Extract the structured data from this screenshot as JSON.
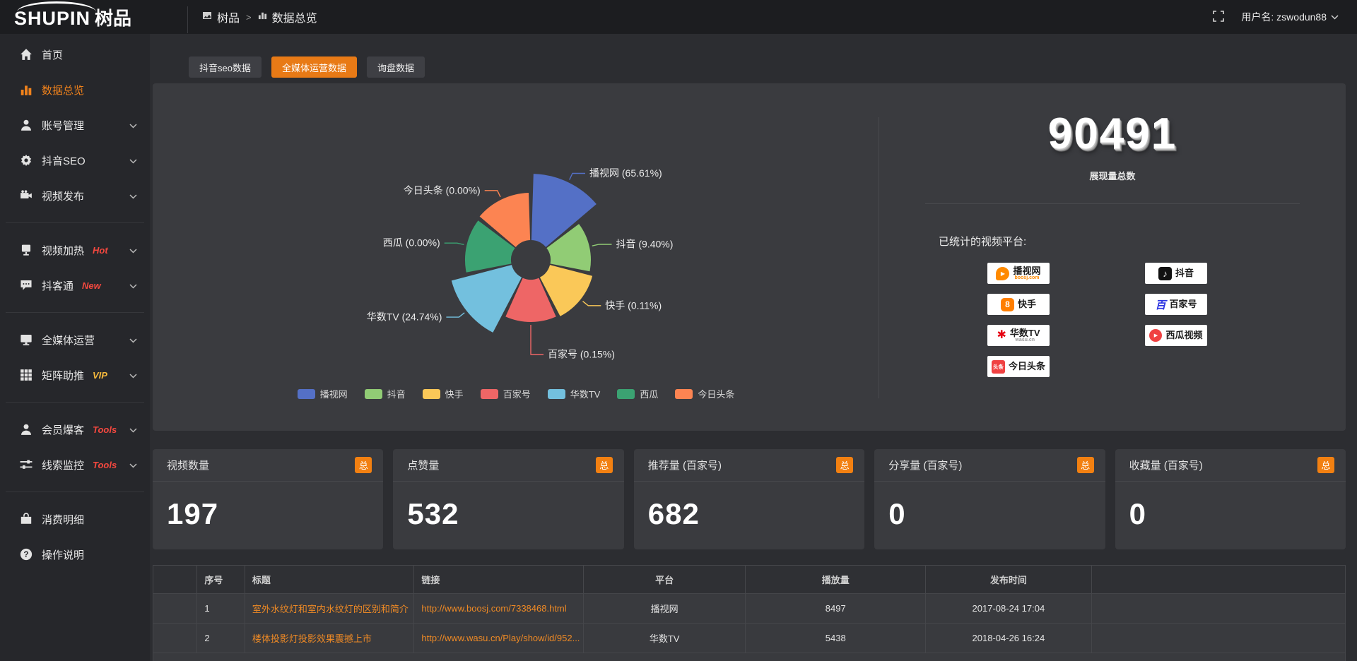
{
  "topbar": {
    "logo_en": "SHUPIN",
    "logo_cn": "树品",
    "breadcrumb": {
      "root": "树品",
      "separator": ">",
      "current": "数据总览"
    },
    "username": "用户名: zswodun88"
  },
  "sidebar": {
    "items": [
      {
        "key": "home",
        "icon": "home",
        "label": "首页"
      },
      {
        "key": "data-overview",
        "icon": "chart",
        "label": "数据总览",
        "active": true
      },
      {
        "key": "account-manage",
        "icon": "user",
        "label": "账号管理",
        "chevron": true
      },
      {
        "key": "douyin-seo",
        "icon": "gear",
        "label": "抖音SEO",
        "chevron": true
      },
      {
        "key": "video-publish",
        "icon": "video",
        "label": "视频发布",
        "chevron": true,
        "divider_after": true
      },
      {
        "key": "video-heat",
        "icon": "screen",
        "label": "视频加热",
        "tag": "Hot",
        "tag_color": "#f4483f",
        "chevron": true
      },
      {
        "key": "douketong",
        "icon": "chat",
        "label": "抖客通",
        "tag": "New",
        "tag_color": "#f4483f",
        "chevron": true,
        "divider_after": true
      },
      {
        "key": "all-media",
        "icon": "monitor",
        "label": "全媒体运营",
        "chevron": true
      },
      {
        "key": "matrix-boost",
        "icon": "grid",
        "label": "矩阵助推",
        "tag": "VIP",
        "tag_color": "#f5b93c",
        "chevron": true,
        "divider_after": true
      },
      {
        "key": "member-burst",
        "icon": "user",
        "label": "会员爆客",
        "tag": "Tools",
        "tag_color": "#f4483f",
        "chevron": true
      },
      {
        "key": "clue-monitor",
        "icon": "sliders",
        "label": "线索监控",
        "tag": "Tools",
        "tag_color": "#f4483f",
        "chevron": true,
        "divider_after": true
      },
      {
        "key": "consume-detail",
        "icon": "bag",
        "label": "消费明细"
      },
      {
        "key": "operation-help",
        "icon": "help",
        "label": "操作说明"
      }
    ]
  },
  "tabs": [
    {
      "key": "douyin-seo-data",
      "label": "抖音seo数据",
      "active": false
    },
    {
      "key": "all-media-data",
      "label": "全媒体运营数据",
      "active": true
    },
    {
      "key": "inquiry-data",
      "label": "询盘数据",
      "active": false
    }
  ],
  "chart_data": {
    "type": "pie",
    "subtype": "nightingale-rose",
    "categories": [
      "播视网",
      "抖音",
      "快手",
      "百家号",
      "华数TV",
      "西瓜",
      "今日头条"
    ],
    "values_percent": [
      65.61,
      9.4,
      0.11,
      0.15,
      24.74,
      0.0,
      0.0
    ],
    "labels": [
      "播视网 (65.61%)",
      "抖音 (9.40%)",
      "快手 (0.11%)",
      "百家号 (0.15%)",
      "华数TV (24.74%)",
      "西瓜 (0.00%)",
      "今日头条 (0.00%)"
    ],
    "colors": [
      "#5470c6",
      "#91cc75",
      "#fac858",
      "#ee6666",
      "#73c0de",
      "#3ba272",
      "#fc8452"
    ],
    "legend": [
      "播视网",
      "抖音",
      "快手",
      "百家号",
      "华数TV",
      "西瓜",
      "今日头条"
    ],
    "legend_position": "bottom",
    "total": 90491
  },
  "summary": {
    "total": "90491",
    "total_label": "展现量总数",
    "platforms_title": "已统计的视频平台:",
    "platforms": [
      {
        "id": "boosj",
        "name": "播视网",
        "sub": "boosj.com",
        "sub_color": "#ff8a00"
      },
      {
        "id": "douyin",
        "name": "抖音"
      },
      {
        "id": "kuaishou",
        "name": "快手"
      },
      {
        "id": "baijiahao",
        "name": "百家号"
      },
      {
        "id": "wasu",
        "name": "华数TV",
        "sub": "wasu.cn",
        "sub_color": "#999999"
      },
      {
        "id": "xigua",
        "name": "西瓜视频"
      },
      {
        "id": "toutiao",
        "name": "今日头条"
      }
    ]
  },
  "stat_cards": [
    {
      "key": "video-count",
      "title": "视频数量",
      "badge": "总",
      "value": "197"
    },
    {
      "key": "like-count",
      "title": "点赞量",
      "badge": "总",
      "value": "532"
    },
    {
      "key": "recommend",
      "title": "推荐量 (百家号)",
      "badge": "总",
      "value": "682"
    },
    {
      "key": "share-count",
      "title": "分享量 (百家号)",
      "badge": "总",
      "value": "0"
    },
    {
      "key": "collect-count",
      "title": "收藏量 (百家号)",
      "badge": "总",
      "value": "0"
    }
  ],
  "table": {
    "headers": [
      "序号",
      "标题",
      "链接",
      "平台",
      "播放量",
      "发布时间"
    ],
    "rows": [
      {
        "no": "1",
        "title": "室外水纹灯和室内水纹灯的区别和简介",
        "link": "http://www.boosj.com/7338468.html",
        "platform": "播视网",
        "plays": "8497",
        "time": "2017-08-24 17:04"
      },
      {
        "no": "2",
        "title": "楼体投影灯投影效果震撼上市",
        "link": "http://www.wasu.cn/Play/show/id/952...",
        "platform": "华数TV",
        "plays": "5438",
        "time": "2018-04-26 16:24"
      }
    ]
  },
  "accent_color": "#e87a16"
}
